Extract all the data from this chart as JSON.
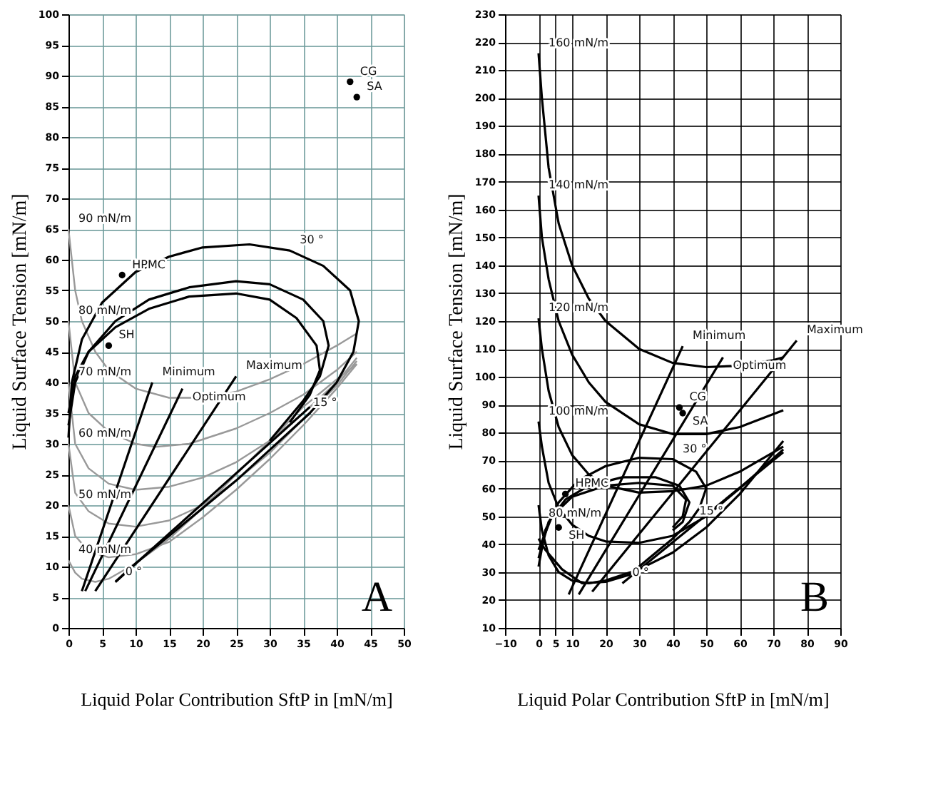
{
  "chart_data": [
    {
      "type": "line",
      "xlabel": "Liquid Polar Contribution SftP in [mN/m]",
      "ylabel": "Liquid Surface Tension [mN/m]",
      "xlim": [
        0,
        50
      ],
      "xticks": [
        0,
        5,
        10,
        15,
        20,
        25,
        30,
        35,
        40,
        45,
        50
      ],
      "ylim": [
        0,
        100
      ],
      "yticks": [
        0,
        5,
        10,
        15,
        20,
        25,
        30,
        35,
        40,
        45,
        50,
        55,
        60,
        65,
        70,
        75,
        80,
        85,
        90,
        95,
        100
      ],
      "grid": true,
      "marker": "none",
      "line_style": "solid",
      "series": [
        {
          "color": "#999999",
          "x": [
            0,
            1,
            2,
            4,
            6,
            10,
            15,
            20,
            25,
            30,
            35,
            40,
            43
          ],
          "values": [
            65,
            55,
            50,
            45,
            42,
            39,
            37.5,
            37.5,
            38.5,
            40.5,
            43,
            46,
            48
          ]
        },
        {
          "color": "#999999",
          "x": [
            0,
            1,
            3,
            6,
            10,
            13,
            18,
            25,
            30,
            35,
            40,
            43
          ],
          "values": [
            50,
            40,
            35,
            32,
            30,
            29.5,
            30,
            32.5,
            35,
            38,
            42,
            45
          ]
        },
        {
          "color": "#999999",
          "x": [
            0,
            1,
            3,
            6,
            10,
            15,
            20,
            25,
            30,
            35,
            40,
            43
          ],
          "values": [
            40,
            30,
            26,
            23.5,
            22.5,
            23,
            24.5,
            27,
            30.5,
            35,
            40,
            44
          ]
        },
        {
          "color": "#999999",
          "x": [
            0,
            1,
            3,
            6,
            10,
            15,
            20,
            25,
            30,
            35,
            40,
            43
          ],
          "values": [
            30,
            22,
            19,
            17,
            16.5,
            17.5,
            20,
            24,
            28.5,
            34,
            39.5,
            43.5
          ]
        },
        {
          "color": "#999999",
          "x": [
            0,
            1,
            3,
            6,
            10,
            15,
            20,
            25,
            30,
            35,
            40,
            43
          ],
          "values": [
            20,
            15,
            12.5,
            11.5,
            12,
            14,
            18,
            22.5,
            27.5,
            33,
            39,
            43
          ]
        },
        {
          "color": "#999999",
          "x": [
            0,
            1,
            2,
            4,
            6,
            10,
            15,
            20,
            25,
            30,
            35,
            40,
            43
          ],
          "values": [
            11,
            9,
            8,
            7.5,
            8,
            10.5,
            14.5,
            19.5,
            25,
            30.5,
            36,
            40.5,
            43
          ]
        },
        {
          "color": "#000000",
          "x": [
            7,
            36
          ],
          "values": [
            7.5,
            36
          ]
        },
        {
          "color": "#000000",
          "x": [
            0,
            0.5,
            2,
            5,
            10,
            15,
            20,
            27,
            33,
            38,
            42,
            43.3,
            42.5,
            40,
            36,
            30,
            25,
            20,
            15,
            10,
            7
          ],
          "values": [
            31,
            40,
            47,
            53,
            58,
            60.5,
            62,
            62.5,
            61.5,
            59,
            55,
            50,
            45,
            40,
            35,
            29,
            24,
            19.5,
            15,
            10.5,
            7.5
          ]
        },
        {
          "color": "#000000",
          "x": [
            0,
            1,
            3,
            7,
            12,
            18,
            25,
            30,
            35,
            38,
            38.8,
            37.5,
            35,
            30
          ],
          "values": [
            33,
            40,
            45,
            50,
            53.5,
            55.5,
            56.5,
            56,
            53.5,
            50,
            46,
            41,
            37,
            30.5
          ]
        },
        {
          "color": "#000000",
          "x": [
            0,
            1,
            3,
            7,
            12,
            18,
            25,
            30,
            34,
            37,
            37.5,
            36,
            33
          ],
          "values": [
            35,
            41,
            45,
            49,
            52,
            54,
            54.5,
            53.5,
            50.5,
            46,
            42,
            38,
            33.5
          ]
        },
        {
          "color": "#000000",
          "x": [
            2,
            12.5
          ],
          "values": [
            6,
            40
          ]
        },
        {
          "color": "#000000",
          "x": [
            2.5,
            17
          ],
          "values": [
            6,
            39
          ]
        },
        {
          "color": "#000000",
          "x": [
            4,
            25
          ],
          "values": [
            6,
            41
          ]
        },
        {
          "type": "scatter",
          "marker": "circle",
          "color": "#000000",
          "x": [
            8,
            6,
            42,
            43
          ],
          "values": [
            57.5,
            46,
            89,
            86.5
          ]
        }
      ],
      "annotations": [
        {
          "text": "90 mN/m",
          "x": 0,
          "y": 65
        },
        {
          "text": "80 mN/m",
          "x": 0,
          "y": 50
        },
        {
          "text": "70 mN/m",
          "x": 0,
          "y": 40
        },
        {
          "text": "60 mN/m",
          "x": 0,
          "y": 30
        },
        {
          "text": "50 mN/m",
          "x": 0,
          "y": 20
        },
        {
          "text": "40 mN/m",
          "x": 0,
          "y": 11
        },
        {
          "text": "30 °",
          "x": 33,
          "y": 61.5
        },
        {
          "text": "15 °",
          "x": 35,
          "y": 35
        },
        {
          "text": "0 °",
          "x": 7,
          "y": 7.5
        },
        {
          "text": "Minimum",
          "x": 12.5,
          "y": 40
        },
        {
          "text": "Optimum",
          "x": 17,
          "y": 39
        },
        {
          "text": "Maximum",
          "x": 25,
          "y": 41
        },
        {
          "text": "HPMC",
          "x": 8,
          "y": 57.5
        },
        {
          "text": "SH",
          "x": 6,
          "y": 46
        },
        {
          "text": "CG",
          "x": 42,
          "y": 89
        },
        {
          "text": "SA",
          "x": 43,
          "y": 86.5
        },
        "A"
      ]
    },
    {
      "type": "line",
      "xlabel": "Liquid Polar Contribution SftP in [mN/m]",
      "ylabel": "Liquid Surface Tension [mN/m]",
      "xlim": [
        -10,
        90
      ],
      "xticks": [
        -10,
        0,
        5,
        10,
        20,
        30,
        40,
        50,
        60,
        70,
        80,
        90
      ],
      "ylim": [
        10,
        230
      ],
      "yticks": [
        10,
        20,
        30,
        40,
        50,
        60,
        70,
        80,
        90,
        100,
        110,
        120,
        130,
        140,
        150,
        160,
        170,
        180,
        190,
        200,
        210,
        220,
        230
      ],
      "grid": true,
      "marker": "none",
      "line_style": "solid",
      "series": [
        {
          "color": "#000000",
          "x": [
            0,
            1,
            3,
            6,
            10,
            15,
            20,
            30,
            40,
            50,
            60,
            70,
            73
          ],
          "values": [
            216,
            200,
            175,
            155,
            140,
            128,
            120,
            110,
            105,
            103.5,
            104,
            106,
            107
          ]
        },
        {
          "color": "#000000",
          "x": [
            0,
            1,
            3,
            6,
            10,
            15,
            20,
            30,
            40,
            50,
            60,
            73
          ],
          "values": [
            165,
            150,
            135,
            120,
            108,
            98,
            91,
            83,
            79.5,
            79.5,
            82,
            88
          ]
        },
        {
          "color": "#000000",
          "x": [
            0,
            1,
            3,
            6,
            10,
            15,
            20,
            30,
            40,
            50,
            60,
            73
          ],
          "values": [
            121,
            110,
            95,
            82,
            72,
            65,
            61,
            58.5,
            59,
            61,
            66,
            75
          ]
        },
        {
          "color": "#000000",
          "x": [
            0,
            1,
            3,
            6,
            10,
            15,
            20,
            30,
            40,
            50,
            60,
            73
          ],
          "values": [
            84,
            75,
            62,
            53,
            47,
            43,
            41,
            40.5,
            43,
            50,
            60,
            74
          ]
        },
        {
          "color": "#000000",
          "x": [
            0,
            1,
            3,
            6,
            10,
            15,
            20,
            30,
            40,
            50,
            60,
            73
          ],
          "values": [
            54,
            45,
            36,
            30,
            27,
            26,
            27,
            31,
            37,
            46,
            58,
            77
          ]
        },
        {
          "color": "#000000",
          "x": [
            25,
            73
          ],
          "values": [
            26,
            73
          ]
        },
        {
          "color": "#000000",
          "x": [
            0,
            2,
            6,
            12,
            20,
            30,
            40,
            47,
            50,
            48,
            45,
            40,
            33,
            27,
            20,
            13,
            7,
            2,
            0
          ],
          "values": [
            32,
            45,
            55,
            63,
            68,
            71,
            70.5,
            66,
            60,
            53,
            48,
            42,
            35,
            29,
            26.5,
            26,
            31,
            38,
            42
          ]
        },
        {
          "color": "#000000",
          "x": [
            0,
            3,
            8,
            15,
            25,
            35,
            42,
            45,
            43,
            40
          ],
          "values": [
            35,
            48,
            56,
            61,
            64,
            64,
            61,
            55,
            48,
            45
          ]
        },
        {
          "color": "#000000",
          "x": [
            0,
            4,
            10,
            20,
            30,
            40,
            44,
            43,
            40
          ],
          "values": [
            38,
            50,
            57,
            61,
            62,
            61,
            56,
            50,
            46
          ]
        },
        {
          "color": "#000000",
          "x": [
            9,
            43
          ],
          "values": [
            22,
            111
          ]
        },
        {
          "color": "#000000",
          "x": [
            12,
            55
          ],
          "values": [
            22,
            107
          ]
        },
        {
          "color": "#000000",
          "x": [
            16,
            77
          ],
          "values": [
            23,
            113
          ]
        },
        {
          "type": "scatter",
          "marker": "circle",
          "color": "#000000",
          "x": [
            8,
            6,
            42,
            43
          ],
          "values": [
            58,
            46,
            89,
            87
          ]
        }
      ],
      "annotations": [
        {
          "text": "160 mN/m",
          "x": 0,
          "y": 216
        },
        {
          "text": "140 mN/m",
          "x": 0,
          "y": 165
        },
        {
          "text": "120 mN/m",
          "x": 0,
          "y": 121
        },
        {
          "text": "100 mN/m",
          "x": 0,
          "y": 84
        },
        {
          "text": "80 mN/m",
          "x": 0,
          "y": 54
        },
        {
          "text": "30 °",
          "x": 40,
          "y": 70.5
        },
        {
          "text": "15 °",
          "x": 45,
          "y": 48
        },
        {
          "text": "0 °",
          "x": 25,
          "y": 26
        },
        {
          "text": "Minimum",
          "x": 43,
          "y": 111
        },
        {
          "text": "Optimum",
          "x": 55,
          "y": 107
        },
        {
          "text": "Maximum",
          "x": 77,
          "y": 113
        },
        {
          "text": "HPMC",
          "x": 8,
          "y": 58
        },
        {
          "text": "SH",
          "x": 6,
          "y": 46
        },
        {
          "text": "CG",
          "x": 42,
          "y": 89
        },
        {
          "text": "SA",
          "x": 43,
          "y": 87
        },
        "B"
      ]
    }
  ]
}
